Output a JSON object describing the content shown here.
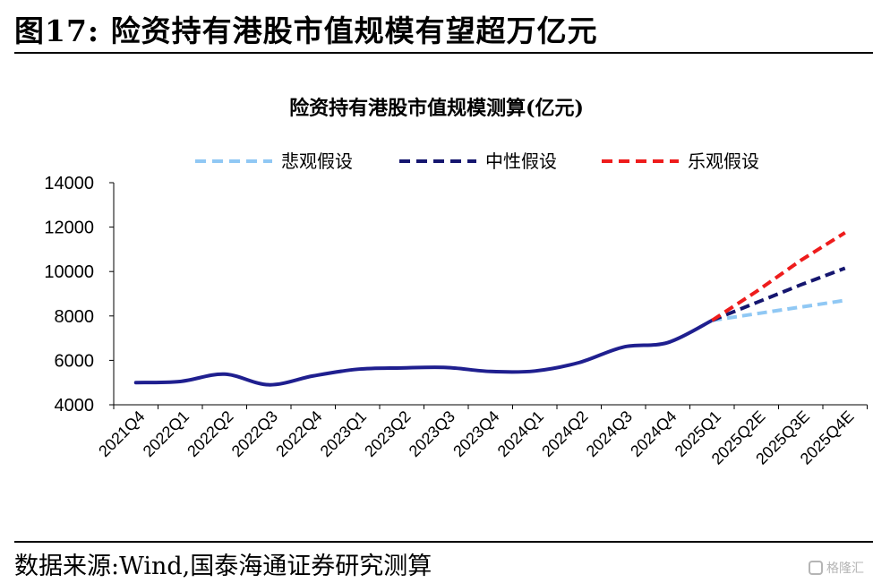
{
  "figure_title": "图17:  险资持有港股市值规模有望超万亿元",
  "source": "数据来源:Wind,国泰海通证券研究测算",
  "watermark": "格隆汇",
  "chart_data": {
    "type": "line",
    "title": "险资持有港股市值规模测算(亿元)",
    "xlabel": "",
    "ylabel": "",
    "ylim": [
      4000,
      14000
    ],
    "yticks": [
      4000,
      6000,
      8000,
      10000,
      12000,
      14000
    ],
    "categories": [
      "2021Q4",
      "2022Q1",
      "2022Q2",
      "2022Q3",
      "2022Q4",
      "2023Q1",
      "2023Q2",
      "2023Q3",
      "2023Q4",
      "2024Q1",
      "2024Q2",
      "2024Q3",
      "2024Q4",
      "2025Q1",
      "2025Q2E",
      "2025Q3E",
      "2025Q4E"
    ],
    "grid": false,
    "legend_position": "top",
    "series": [
      {
        "values": [
          5000,
          5050,
          5380,
          4900,
          5300,
          5600,
          5660,
          5680,
          5500,
          5520,
          5900,
          6600,
          6800,
          7800,
          null,
          null,
          null
        ],
        "color": "#1f1f8f",
        "style": "solid"
      },
      {
        "name": "悲观假设",
        "values": [
          null,
          null,
          null,
          null,
          null,
          null,
          null,
          null,
          null,
          null,
          null,
          null,
          null,
          7800,
          8100,
          8400,
          8700
        ],
        "color": "#90c8f4",
        "style": "dashed"
      },
      {
        "name": "中性假设",
        "values": [
          null,
          null,
          null,
          null,
          null,
          null,
          null,
          null,
          null,
          null,
          null,
          null,
          null,
          7800,
          8600,
          9400,
          10150
        ],
        "color": "#15166f",
        "style": "dashed"
      },
      {
        "name": "乐观假设",
        "values": [
          null,
          null,
          null,
          null,
          null,
          null,
          null,
          null,
          null,
          null,
          null,
          null,
          null,
          7800,
          9100,
          10500,
          11750
        ],
        "color": "#ee1c1c",
        "style": "dashed"
      }
    ]
  }
}
